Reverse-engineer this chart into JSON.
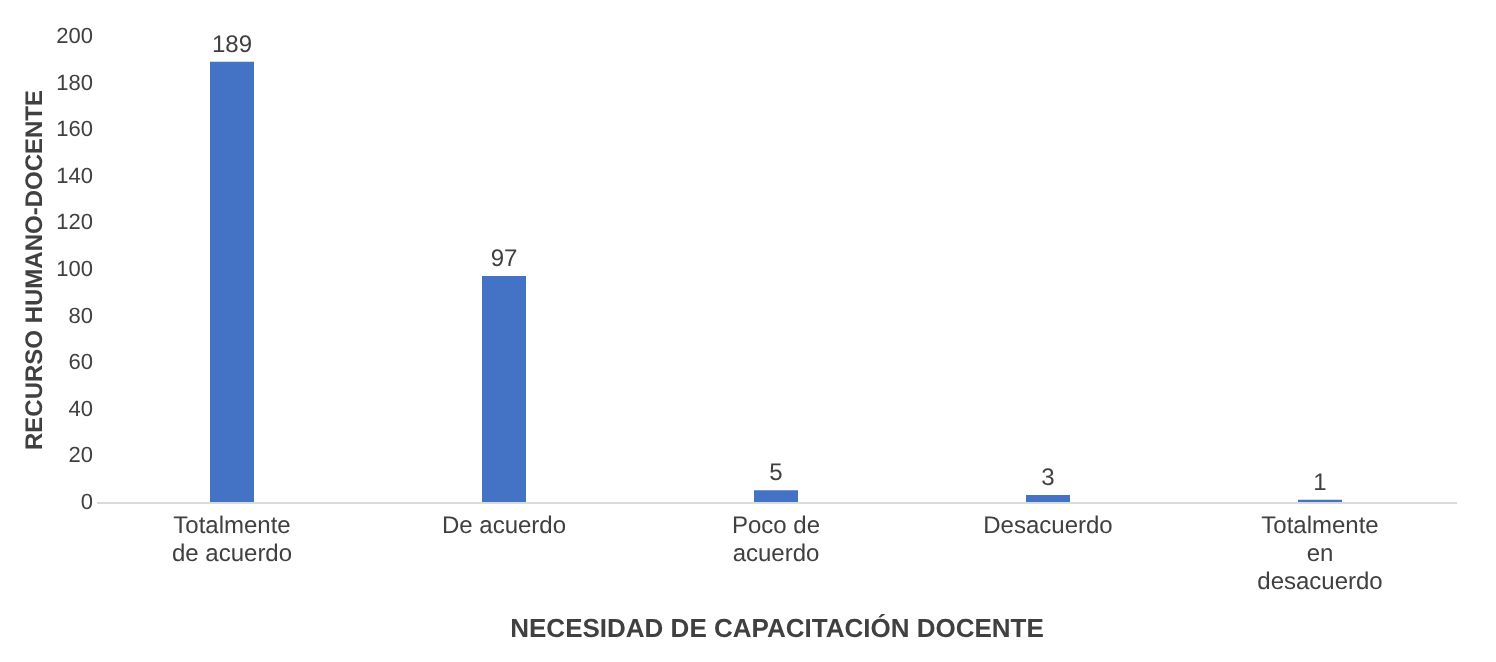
{
  "chart_data": {
    "type": "bar",
    "xlabel": "NECESIDAD DE CAPACITACIÓN DOCENTE",
    "ylabel": "RECURSO HUMANO-DOCENTE",
    "categories": [
      "Totalmente\nde acuerdo",
      "De acuerdo",
      "Poco de\nacuerdo",
      "Desacuerdo",
      "Totalmente\nen\ndesacuerdo"
    ],
    "values": [
      189,
      97,
      5,
      3,
      1
    ],
    "color": "#4472c4",
    "ylim": [
      0,
      200
    ],
    "yticks": [
      0,
      20,
      40,
      60,
      80,
      100,
      120,
      140,
      160,
      180,
      200
    ],
    "grid": false,
    "data_labels": true
  }
}
